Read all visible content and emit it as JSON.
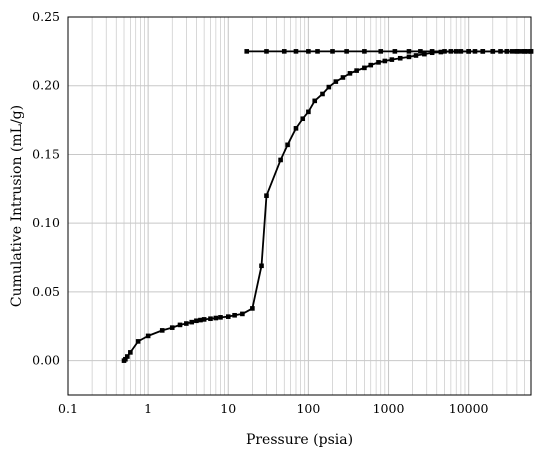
{
  "chart_data": {
    "type": "line",
    "title": "",
    "xlabel": "Pressure (psia)",
    "ylabel": "Cumulative Intrusion (mL/g)",
    "x_scale": "log",
    "xlim": [
      0.1,
      60000
    ],
    "ylim": [
      -0.025,
      0.25
    ],
    "grid": true,
    "legend": "none",
    "x_tick_labels": [
      "0.1",
      "1",
      "10",
      "100",
      "1000",
      "10000"
    ],
    "y_tick_labels": [
      "0.00",
      "0.05",
      "0.10",
      "0.15",
      "0.20",
      "0.25"
    ],
    "line_color": "#000000",
    "grid_color": "#c8c8c8",
    "series": [
      {
        "marker": "square",
        "points": [
          [
            0.5,
            0.0
          ],
          [
            0.52,
            0.001
          ],
          [
            0.55,
            0.003
          ],
          [
            0.6,
            0.006
          ],
          [
            0.75,
            0.014
          ],
          [
            1.0,
            0.018
          ],
          [
            1.5,
            0.022
          ],
          [
            2.0,
            0.024
          ],
          [
            2.5,
            0.026
          ],
          [
            3.0,
            0.027
          ],
          [
            3.5,
            0.028
          ],
          [
            4.0,
            0.029
          ],
          [
            4.5,
            0.0295
          ],
          [
            5.0,
            0.03
          ],
          [
            6.0,
            0.0305
          ],
          [
            7.0,
            0.031
          ],
          [
            8.0,
            0.0315
          ],
          [
            10.0,
            0.032
          ],
          [
            12.0,
            0.033
          ],
          [
            15.0,
            0.034
          ],
          [
            20.0,
            0.038
          ],
          [
            26.0,
            0.069
          ],
          [
            30.0,
            0.12
          ],
          [
            45.0,
            0.146
          ],
          [
            55.0,
            0.157
          ],
          [
            70.0,
            0.169
          ],
          [
            85.0,
            0.176
          ],
          [
            100.0,
            0.181
          ],
          [
            120.0,
            0.189
          ],
          [
            150.0,
            0.194
          ],
          [
            180.0,
            0.199
          ],
          [
            220.0,
            0.203
          ],
          [
            270.0,
            0.206
          ],
          [
            330.0,
            0.209
          ],
          [
            400.0,
            0.211
          ],
          [
            500.0,
            0.213
          ],
          [
            600.0,
            0.215
          ],
          [
            750.0,
            0.217
          ],
          [
            900.0,
            0.218
          ],
          [
            1100.0,
            0.219
          ],
          [
            1400.0,
            0.22
          ],
          [
            1800.0,
            0.221
          ],
          [
            2200.0,
            0.222
          ],
          [
            2800.0,
            0.223
          ],
          [
            3500.0,
            0.224
          ],
          [
            4500.0,
            0.2245
          ],
          [
            6000.0,
            0.225
          ],
          [
            8000.0,
            0.225
          ],
          [
            10000.0,
            0.225
          ],
          [
            12000.0,
            0.225
          ],
          [
            15000.0,
            0.225
          ],
          [
            20000.0,
            0.225
          ],
          [
            25000.0,
            0.225
          ],
          [
            30000.0,
            0.225
          ],
          [
            35000.0,
            0.225
          ],
          [
            40000.0,
            0.225
          ],
          [
            45000.0,
            0.225
          ],
          [
            50000.0,
            0.225
          ],
          [
            55000.0,
            0.225
          ],
          [
            60000.0,
            0.225
          ]
        ]
      },
      {
        "marker": "square",
        "points": [
          [
            60000.0,
            0.225
          ],
          [
            50000.0,
            0.225
          ],
          [
            40000.0,
            0.225
          ],
          [
            30000.0,
            0.225
          ],
          [
            20000.0,
            0.225
          ],
          [
            15000.0,
            0.225
          ],
          [
            10000.0,
            0.225
          ],
          [
            7000.0,
            0.225
          ],
          [
            5000.0,
            0.225
          ],
          [
            3500.0,
            0.225
          ],
          [
            2500.0,
            0.225
          ],
          [
            1800.0,
            0.225
          ],
          [
            1200.0,
            0.225
          ],
          [
            800.0,
            0.225
          ],
          [
            500.0,
            0.225
          ],
          [
            300.0,
            0.225
          ],
          [
            200.0,
            0.225
          ],
          [
            130.0,
            0.225
          ],
          [
            100.0,
            0.225
          ],
          [
            70.0,
            0.225
          ],
          [
            50.0,
            0.225
          ],
          [
            30.0,
            0.225
          ],
          [
            17.0,
            0.225
          ]
        ]
      }
    ]
  }
}
